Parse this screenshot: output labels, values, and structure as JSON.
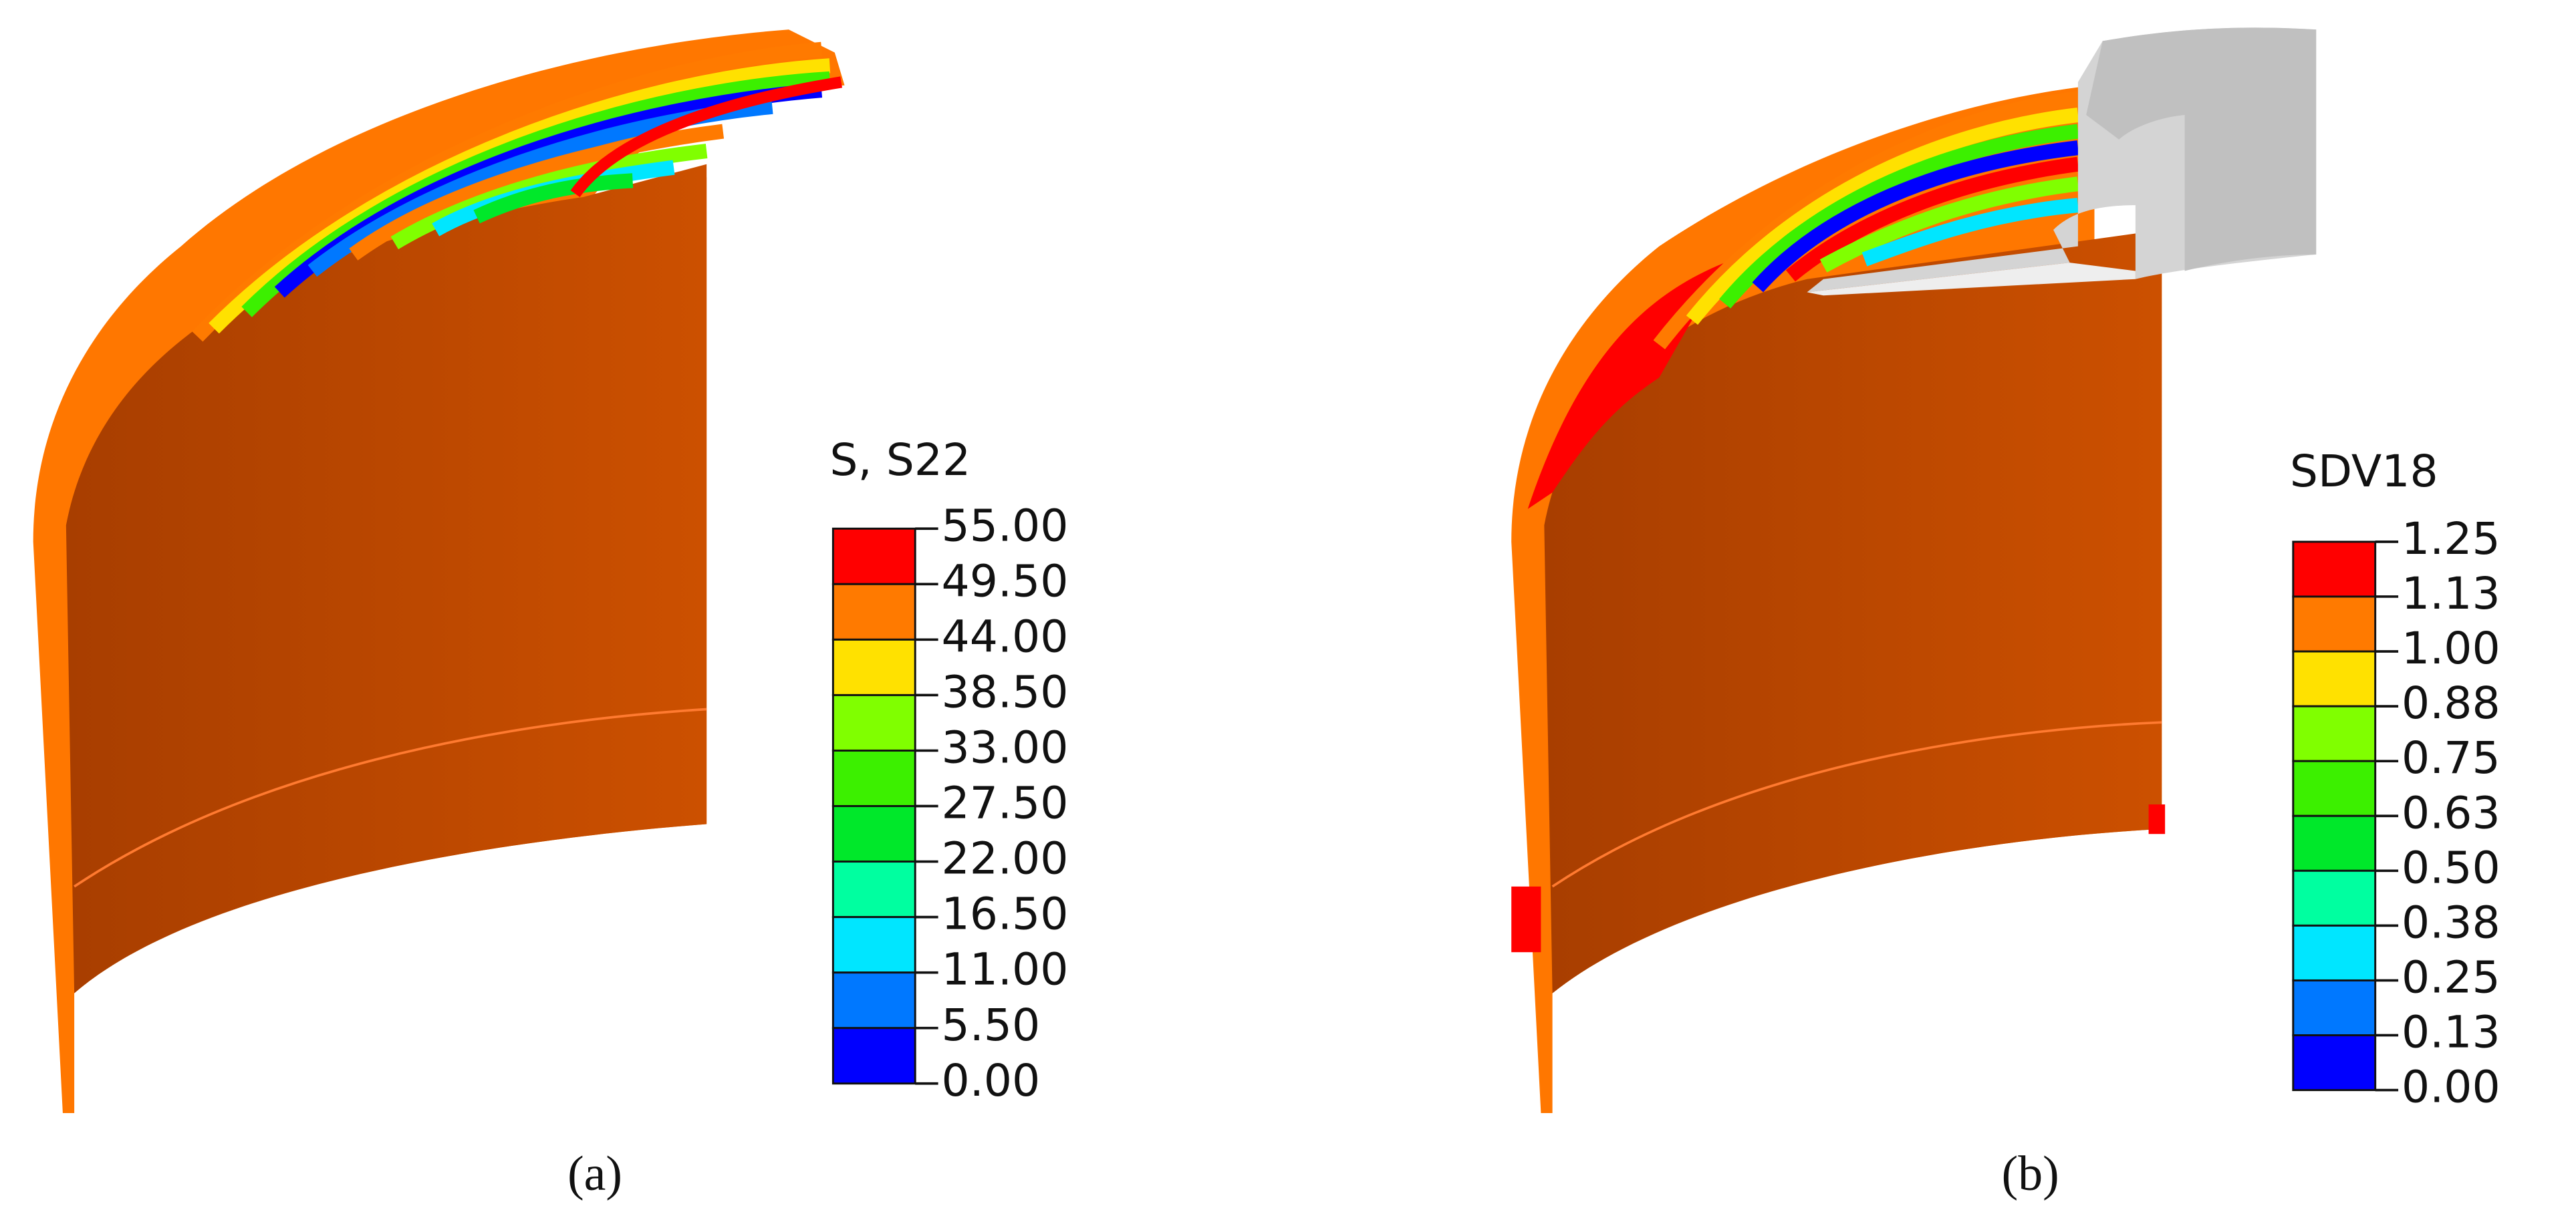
{
  "panels": [
    {
      "legend_title": "S, S22",
      "labels": [
        "55.00",
        "49.50",
        "44.00",
        "38.50",
        "33.00",
        "27.50",
        "22.00",
        "16.50",
        "11.00",
        "5.50",
        "0.00"
      ],
      "colors": [
        "#ff0000",
        "#ff7a00",
        "#ffe100",
        "#80ff00",
        "#3cf000",
        "#00e82a",
        "#00ffa0",
        "#00e6ff",
        "#0078ff",
        "#0000ff"
      ],
      "caption": "(a)"
    },
    {
      "legend_title": "SDV18",
      "labels": [
        "1.25",
        "1.13",
        "1.00",
        "0.88",
        "0.75",
        "0.63",
        "0.50",
        "0.38",
        "0.25",
        "0.13",
        "0.00"
      ],
      "colors": [
        "#ff0000",
        "#ff7a00",
        "#ffe100",
        "#80ff00",
        "#3cf000",
        "#00e82a",
        "#00ffa0",
        "#00e6ff",
        "#0078ff",
        "#0000ff"
      ],
      "caption": "(b)"
    }
  ]
}
